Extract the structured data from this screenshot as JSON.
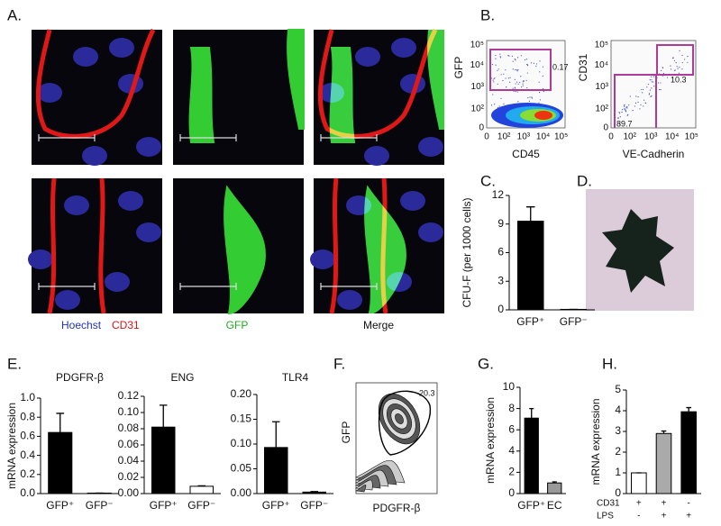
{
  "panel_labels": [
    "A.",
    "B.",
    "C.",
    "D.",
    "E.",
    "F.",
    "G.",
    "H."
  ],
  "panel_a": {
    "stain_labels": [
      "Hoechst",
      "CD31",
      "GFP",
      "Merge"
    ]
  },
  "panel_b": {
    "ticks": [
      "0",
      "10²",
      "10³",
      "10⁴",
      "10⁵"
    ],
    "plots": [
      {
        "x_label": "CD45",
        "y_label": "GFP",
        "gates": [
          "0.17"
        ]
      },
      {
        "x_label": "VE-Cadherin",
        "y_label": "CD31",
        "gates": [
          "10.3",
          "89.7"
        ]
      }
    ]
  },
  "panel_f": {
    "x_label": "PDGFR-β",
    "y_label": "GFP",
    "gate": "20.3"
  },
  "panel_h_rows": [
    {
      "name": "CD31",
      "signs": [
        "+",
        "+",
        "-"
      ]
    },
    {
      "name": "LPS",
      "signs": [
        "-",
        "+",
        "+"
      ]
    }
  ],
  "chart_data": [
    {
      "type": "bar",
      "y_label": "CFU-F (per 1000 cells)",
      "categories": [
        "GFP⁺",
        "GFP⁻"
      ],
      "values": [
        9.3,
        0.05
      ],
      "errors": [
        1.5,
        0
      ],
      "colors": [
        "#000000",
        "#000000"
      ],
      "ylim": [
        0,
        12
      ],
      "yticks": [
        0,
        3,
        6,
        9,
        12
      ]
    },
    {
      "type": "bar",
      "title": "PDGFR-β",
      "y_label": "mRNA expression",
      "categories": [
        "GFP⁺",
        "GFP⁻"
      ],
      "values": [
        0.64,
        0.005
      ],
      "errors": [
        0.2,
        0
      ],
      "colors": [
        "#000000",
        "#000000"
      ],
      "ylim": [
        0,
        1
      ],
      "yticks": [
        {
          "value": 0,
          "label": "0.0"
        },
        0.2,
        0.4,
        0.6,
        0.8,
        {
          "value": 1,
          "label": "1.0"
        }
      ]
    },
    {
      "type": "bar",
      "title": "ENG",
      "categories": [
        "GFP⁺",
        "GFP⁻"
      ],
      "values": [
        0.082,
        0.009
      ],
      "errors": [
        0.027,
        0.0006
      ],
      "colors": [
        "#000000",
        "#ffffff"
      ],
      "ylim": [
        0,
        0.12
      ],
      "yticks": [
        {
          "value": 0,
          "label": "0.00"
        },
        0.02,
        0.04,
        0.06,
        0.08,
        {
          "value": 0.1,
          "label": "0.10"
        },
        0.12
      ]
    },
    {
      "type": "bar",
      "title": "TLR4",
      "categories": [
        "GFP⁺",
        "GFP⁻"
      ],
      "values": [
        0.093,
        0.003
      ],
      "errors": [
        0.052,
        0.001
      ],
      "colors": [
        "#000000",
        "#000000"
      ],
      "ylim": [
        0,
        0.2
      ],
      "yticks": [
        {
          "value": 0,
          "label": "0.00"
        },
        0.05,
        {
          "value": 0.1,
          "label": "0.10"
        },
        0.15,
        {
          "value": 0.2,
          "label": "0.20"
        }
      ]
    },
    {
      "type": "bar",
      "y_label": "mRNA expression",
      "categories": [
        "GFP⁺",
        "EC"
      ],
      "values": [
        7.1,
        1.0
      ],
      "errors": [
        0.9,
        0.1
      ],
      "colors": [
        "#000000",
        "#999999"
      ],
      "ylim": [
        0,
        10
      ],
      "yticks": [
        0,
        2,
        4,
        6,
        8,
        10
      ]
    },
    {
      "type": "bar",
      "y_label": "mRNA expression",
      "categories": [
        null,
        null,
        null
      ],
      "values": [
        1.0,
        2.9,
        3.95
      ],
      "errors": [
        0,
        0.12,
        0.2
      ],
      "colors": [
        "#ffffff",
        "#aaaaaa",
        "#000000"
      ],
      "ylim": [
        0,
        5
      ],
      "yticks": [
        0,
        1,
        2,
        3,
        4,
        5
      ]
    }
  ]
}
